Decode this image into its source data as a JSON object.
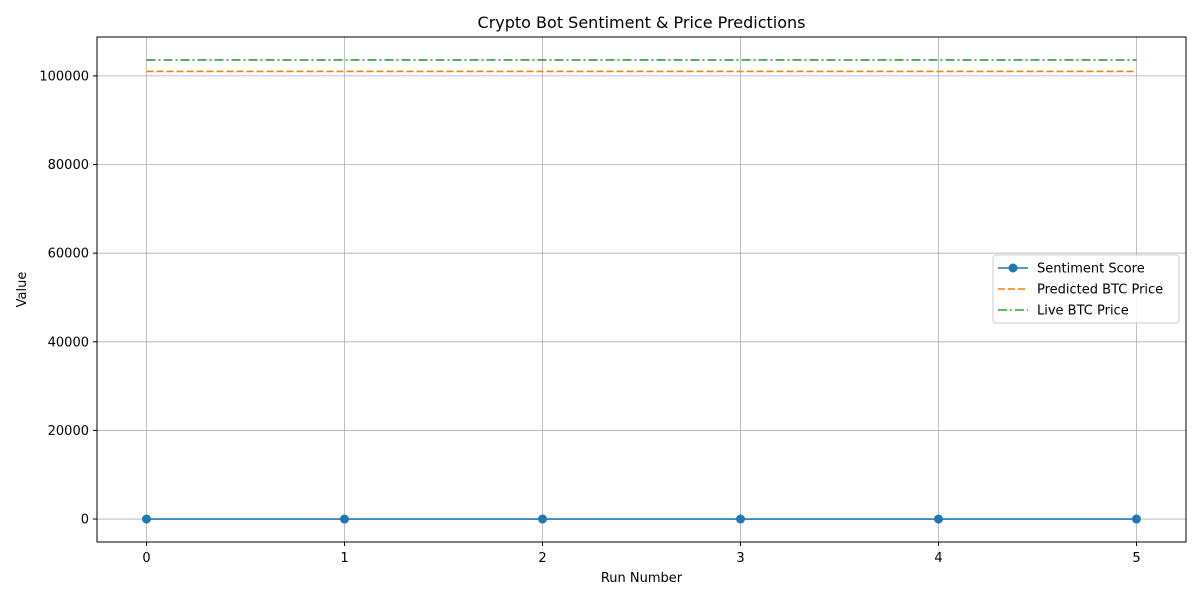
{
  "chart_data": {
    "type": "line",
    "title": "Crypto Bot Sentiment & Price Predictions",
    "xlabel": "Run Number",
    "ylabel": "Value",
    "x": [
      0,
      1,
      2,
      3,
      4,
      5
    ],
    "x_ticks": [
      "0",
      "1",
      "2",
      "3",
      "4",
      "5"
    ],
    "xlim": [
      -0.25,
      5.25
    ],
    "y_ticks": [
      "0",
      "20000",
      "40000",
      "60000",
      "80000",
      "100000"
    ],
    "ylim": [
      -5180,
      108780
    ],
    "grid": true,
    "legend_position": "center-right",
    "series": [
      {
        "name": "Sentiment Score",
        "values": [
          0,
          0,
          0,
          0,
          0,
          0
        ],
        "color": "#1f77b4",
        "style": "solid",
        "marker": "circle"
      },
      {
        "name": "Predicted BTC Price",
        "values": [
          101000,
          101000,
          101000,
          101000,
          101000,
          101000
        ],
        "color": "#ff7f0e",
        "style": "dashed",
        "marker": "none"
      },
      {
        "name": "Live BTC Price",
        "values": [
          103600,
          103600,
          103600,
          103600,
          103600,
          103600
        ],
        "color": "#2ca02c",
        "style": "dashdot",
        "marker": "none"
      }
    ]
  }
}
